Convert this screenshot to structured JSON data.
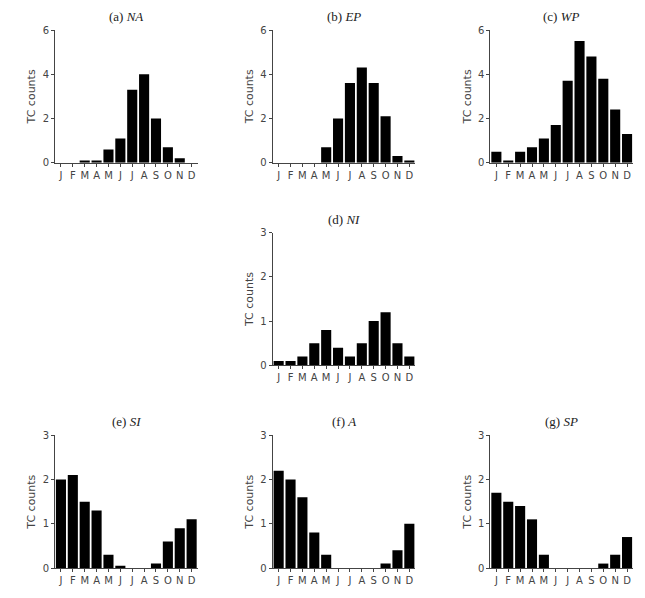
{
  "chart_data": [
    {
      "type": "bar",
      "title": "(a) NA",
      "categories": [
        "J",
        "F",
        "M",
        "A",
        "M",
        "J",
        "J",
        "A",
        "S",
        "O",
        "N",
        "D"
      ],
      "values": [
        0.0,
        0.0,
        0.1,
        0.1,
        0.6,
        1.1,
        3.3,
        4.0,
        2.0,
        0.7,
        0.2,
        0.0
      ],
      "color": "#000000",
      "ylabel": "TC counts",
      "ylim": [
        0,
        6
      ],
      "yticks": [
        0,
        2,
        4,
        6
      ],
      "grid": false
    },
    {
      "type": "bar",
      "title": "(b) EP",
      "categories": [
        "J",
        "F",
        "M",
        "A",
        "M",
        "J",
        "J",
        "A",
        "S",
        "O",
        "N",
        "D"
      ],
      "values": [
        0.0,
        0.0,
        0.0,
        0.0,
        0.7,
        2.0,
        3.6,
        4.3,
        3.6,
        2.1,
        0.3,
        0.1
      ],
      "color": "#000000",
      "ylabel": "TC counts",
      "ylim": [
        0,
        6
      ],
      "yticks": [
        0,
        2,
        4,
        6
      ],
      "grid": false
    },
    {
      "type": "bar",
      "title": "(c) WP",
      "categories": [
        "J",
        "F",
        "M",
        "A",
        "M",
        "J",
        "J",
        "A",
        "S",
        "O",
        "N",
        "D"
      ],
      "values": [
        0.5,
        0.1,
        0.5,
        0.7,
        1.1,
        1.7,
        3.7,
        5.5,
        4.8,
        3.8,
        2.4,
        1.3
      ],
      "color": "#000000",
      "ylabel": "TC counts",
      "ylim": [
        0,
        6
      ],
      "yticks": [
        0,
        2,
        4,
        6
      ],
      "grid": false
    },
    {
      "type": "bar",
      "title": "(d) NI",
      "categories": [
        "J",
        "F",
        "M",
        "A",
        "M",
        "J",
        "J",
        "A",
        "S",
        "O",
        "N",
        "D"
      ],
      "values": [
        0.1,
        0.1,
        0.2,
        0.5,
        0.8,
        0.4,
        0.2,
        0.5,
        1.0,
        1.2,
        0.5,
        0.2
      ],
      "color": "#000000",
      "ylabel": "TC counts",
      "ylim": [
        0,
        3
      ],
      "yticks": [
        0,
        1,
        2,
        3
      ],
      "grid": false
    },
    {
      "type": "bar",
      "title": "(e) SI",
      "categories": [
        "J",
        "F",
        "M",
        "A",
        "M",
        "J",
        "J",
        "A",
        "S",
        "O",
        "N",
        "D"
      ],
      "values": [
        2.0,
        2.1,
        1.5,
        1.3,
        0.3,
        0.05,
        0.0,
        0.0,
        0.1,
        0.6,
        0.9,
        1.1
      ],
      "color": "#000000",
      "ylabel": "TC counts",
      "ylim": [
        0,
        3
      ],
      "yticks": [
        0,
        1,
        2,
        3
      ],
      "grid": false
    },
    {
      "type": "bar",
      "title": "(f) A",
      "categories": [
        "J",
        "F",
        "M",
        "A",
        "M",
        "J",
        "J",
        "A",
        "S",
        "O",
        "N",
        "D"
      ],
      "values": [
        2.2,
        2.0,
        1.6,
        0.8,
        0.3,
        0.0,
        0.0,
        0.0,
        0.0,
        0.1,
        0.4,
        1.0
      ],
      "color": "#000000",
      "ylabel": "TC counts",
      "ylim": [
        0,
        3
      ],
      "yticks": [
        0,
        1,
        2,
        3
      ],
      "grid": false
    },
    {
      "type": "bar",
      "title": "(g) SP",
      "categories": [
        "J",
        "F",
        "M",
        "A",
        "M",
        "J",
        "J",
        "A",
        "S",
        "O",
        "N",
        "D"
      ],
      "values": [
        1.7,
        1.5,
        1.4,
        1.1,
        0.3,
        0.0,
        0.0,
        0.0,
        0.0,
        0.1,
        0.3,
        0.7
      ],
      "color": "#000000",
      "ylabel": "TC counts",
      "ylim": [
        0,
        3
      ],
      "yticks": [
        0,
        1,
        2,
        3
      ],
      "grid": false
    }
  ]
}
